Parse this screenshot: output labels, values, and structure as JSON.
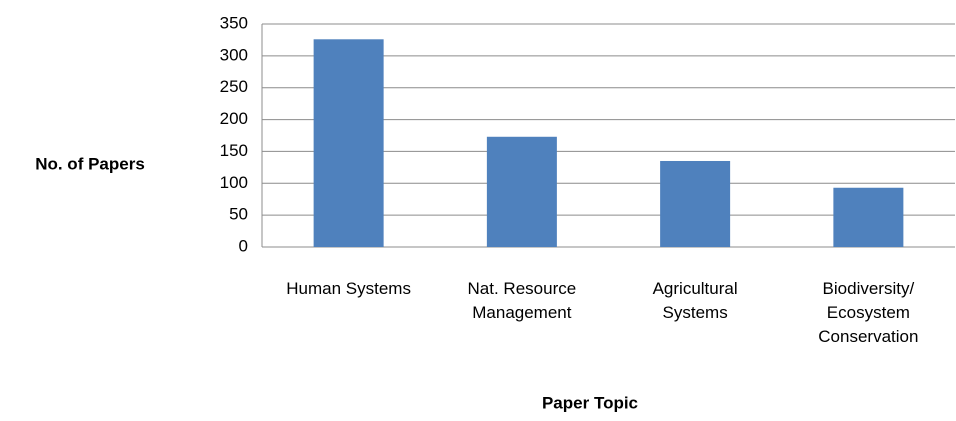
{
  "chart_data": {
    "type": "bar",
    "xlabel": "Paper Topic",
    "ylabel": "No. of Papers",
    "categories": [
      "Human Systems",
      "Nat. Resource Management",
      "Agricultural Systems",
      "Biodiversity/ Ecosystem Conservation"
    ],
    "values": [
      326,
      173,
      135,
      93
    ],
    "color": "#4f81bd",
    "ylim": [
      0,
      350
    ],
    "yticks": [
      0,
      50,
      100,
      150,
      200,
      250,
      300,
      350
    ],
    "grid": true
  }
}
